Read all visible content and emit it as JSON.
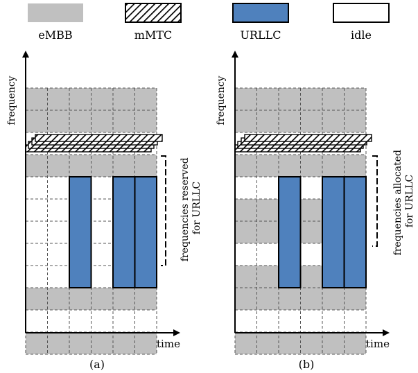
{
  "legend": {
    "embb": "eMBB",
    "mmtc": "mMTC",
    "urllc": "URLLC",
    "idle": "idle"
  },
  "colors": {
    "embb": "#c0c0c0",
    "urllc": "#4f81bd",
    "idle": "#ffffff",
    "grid_dash": "#555555"
  },
  "panel_a": {
    "y_axis_label": "frequency",
    "x_axis_label": "time",
    "caption": "(a)",
    "bracket_label_line1": "frequencies reserved",
    "bracket_label_line2": "for URLLC",
    "row_types": [
      "embb",
      "embb",
      "mmtc",
      "embb",
      "reserved",
      "reserved",
      "reserved",
      "reserved",
      "reserved",
      "embb",
      "idle",
      "embb"
    ]
  },
  "panel_b": {
    "y_axis_label": "frequency",
    "x_axis_label": "time",
    "caption": "(b)",
    "bracket_label_line1": "frequencies allocated",
    "bracket_label_line2": "for URLLC",
    "row_types": [
      "embb",
      "embb",
      "mmtc",
      "embb",
      "idle",
      "embb",
      "embb",
      "idle",
      "embb",
      "embb",
      "idle",
      "embb"
    ]
  }
}
